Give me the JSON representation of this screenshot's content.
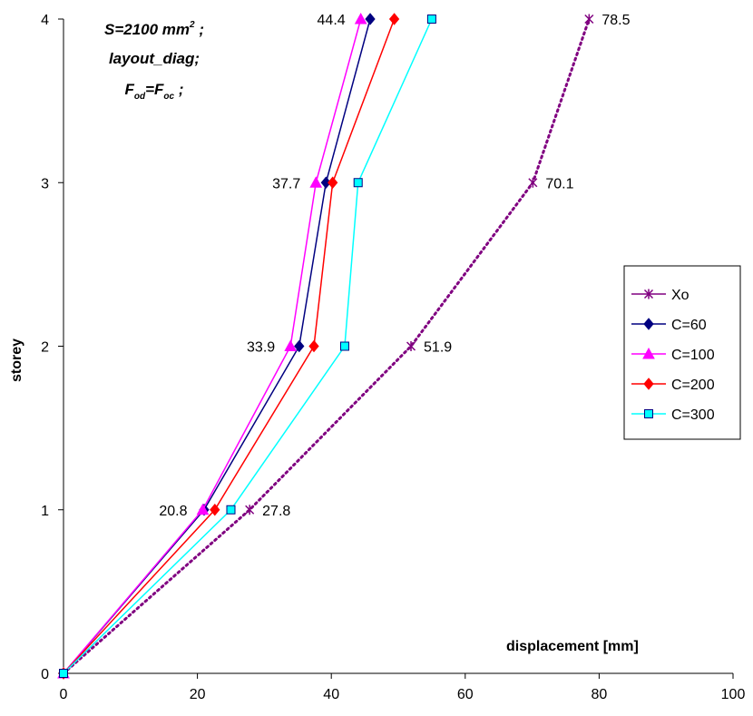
{
  "chart_data": {
    "type": "line",
    "xlabel": "displacement [mm]",
    "ylabel": "storey",
    "xlim": [
      0,
      100
    ],
    "ylim": [
      0,
      4
    ],
    "xticks": [
      "0",
      "20",
      "40",
      "60",
      "80",
      "100"
    ],
    "yticks": [
      "0",
      "1",
      "2",
      "3",
      "4"
    ],
    "grid": false,
    "legend_position": "right",
    "annotation": {
      "line1": "S=2100 mm",
      "line1_sup": "2",
      "line1_end": " ;",
      "line2": "layout_diag;",
      "line3_f1": "F",
      "line3_sub1": "od",
      "line3_eq": "=F",
      "line3_sub2": "oc",
      "line3_end": " ;"
    },
    "series": [
      {
        "name": "Xo",
        "color": "#800080",
        "marker": "star",
        "dash": "dotted",
        "points": [
          [
            0,
            0
          ],
          [
            27.8,
            1
          ],
          [
            51.9,
            2
          ],
          [
            70.1,
            3
          ],
          [
            78.5,
            4
          ]
        ]
      },
      {
        "name": "C=60",
        "color": "#000080",
        "marker": "diamond",
        "dash": "solid",
        "points": [
          [
            0,
            0
          ],
          [
            21.0,
            1
          ],
          [
            35.2,
            2
          ],
          [
            39.2,
            3
          ],
          [
            45.8,
            4
          ]
        ]
      },
      {
        "name": "C=100",
        "color": "#FF00FF",
        "marker": "triangle",
        "dash": "solid",
        "points": [
          [
            0,
            0
          ],
          [
            20.8,
            1
          ],
          [
            33.9,
            2
          ],
          [
            37.7,
            3
          ],
          [
            44.4,
            4
          ]
        ]
      },
      {
        "name": "C=200",
        "color": "#FF0000",
        "marker": "diamond",
        "dash": "solid",
        "points": [
          [
            0,
            0
          ],
          [
            22.6,
            1
          ],
          [
            37.4,
            2
          ],
          [
            40.2,
            3
          ],
          [
            49.4,
            4
          ]
        ]
      },
      {
        "name": "C=300",
        "color": "#00FFFF",
        "marker": "square",
        "dash": "solid",
        "points": [
          [
            0,
            0
          ],
          [
            25.0,
            1
          ],
          [
            42.0,
            2
          ],
          [
            44.0,
            3
          ],
          [
            55.0,
            4
          ]
        ]
      }
    ],
    "data_labels": [
      {
        "text": "78.5",
        "x": 78.5,
        "y": 4,
        "side": "right"
      },
      {
        "text": "44.4",
        "x": 44.4,
        "y": 4,
        "side": "left"
      },
      {
        "text": "70.1",
        "x": 70.1,
        "y": 3,
        "side": "right"
      },
      {
        "text": "37.7",
        "x": 37.7,
        "y": 3,
        "side": "left"
      },
      {
        "text": "51.9",
        "x": 51.9,
        "y": 2,
        "side": "right"
      },
      {
        "text": "33.9",
        "x": 33.9,
        "y": 2,
        "side": "left"
      },
      {
        "text": "27.8",
        "x": 27.8,
        "y": 1,
        "side": "right"
      },
      {
        "text": "20.8",
        "x": 20.8,
        "y": 1,
        "side": "left"
      }
    ]
  }
}
